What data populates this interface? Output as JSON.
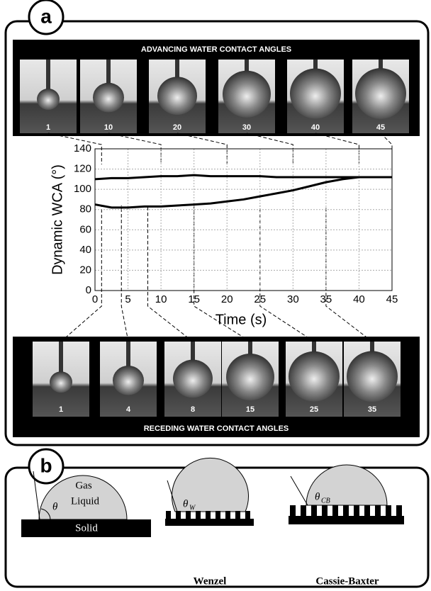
{
  "panel_a": {
    "label": "a",
    "advancing_title": "ADVANCING WATER CONTACT ANGLES",
    "advancing_frames": [
      1,
      10,
      20,
      30,
      40,
      45
    ],
    "receding_title": "RECEDING WATER CONTACT ANGLES",
    "receding_frames": [
      1,
      4,
      8,
      15,
      25,
      35
    ]
  },
  "chart_data": {
    "type": "line",
    "x_label": "Time (s)",
    "y_label": "Dynamic WCA (°)",
    "x": [
      0,
      2.5,
      5,
      7.5,
      10,
      12.5,
      15,
      17.5,
      20,
      22.5,
      25,
      27.5,
      30,
      32.5,
      35,
      37.5,
      40,
      42.5,
      45
    ],
    "series": [
      {
        "color": "#000000",
        "values": [
          110,
          111,
          111,
          112,
          113,
          113,
          114,
          113,
          113,
          113,
          113,
          112,
          112,
          112,
          112,
          112,
          112,
          112,
          112
        ]
      },
      {
        "color": "#000000",
        "values": [
          85,
          82,
          82,
          83,
          83,
          84,
          85,
          86,
          88,
          90,
          93,
          96,
          99,
          103,
          107,
          110,
          112,
          112,
          112
        ]
      }
    ],
    "xlim": [
      0,
      45
    ],
    "xticks": [
      0,
      5,
      10,
      15,
      20,
      25,
      30,
      35,
      40,
      45
    ],
    "ylim": [
      0,
      140
    ],
    "yticks": [
      0,
      20,
      40,
      60,
      80,
      100,
      120,
      140
    ],
    "grid": true
  },
  "panel_b": {
    "label": "b",
    "gas": "Gas",
    "liquid": "Liquid",
    "solid": "Solid",
    "theta": "θ",
    "wenzel_theta": "θ",
    "wenzel_sub": "W",
    "wenzel": "Wenzel",
    "cassie_theta": "θ",
    "cassie_sub": "CB",
    "cassie": "Cassie-Baxter"
  }
}
